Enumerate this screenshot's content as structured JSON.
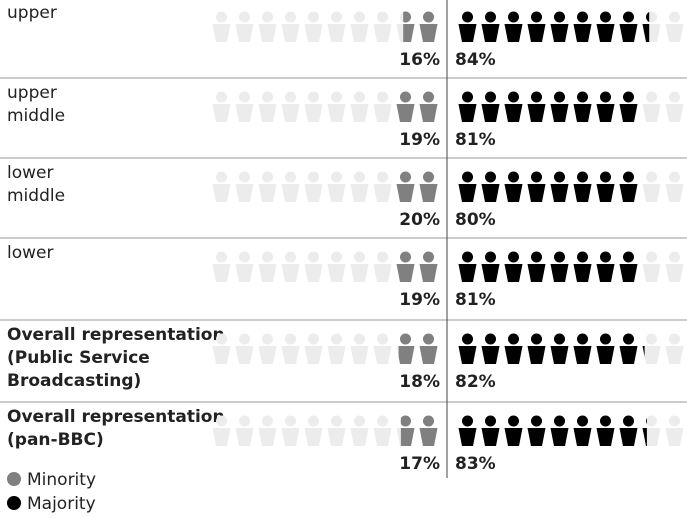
{
  "chart_data": {
    "type": "pictogram",
    "categories": [
      [
        "upper"
      ],
      [
        "upper",
        "middle"
      ],
      [
        "lower",
        "middle"
      ],
      [
        "lower"
      ],
      [
        "Overall representation",
        "(Public Service",
        "Broadcasting)"
      ],
      [
        "Overall representation",
        "(pan-BBC)"
      ]
    ],
    "series": [
      {
        "name": "Minority",
        "color": "#808080",
        "values": [
          16,
          19,
          20,
          19,
          18,
          17
        ],
        "value_labels": [
          "16%",
          "19%",
          "20%",
          "19%",
          "18%",
          "17%"
        ]
      },
      {
        "name": "Majority",
        "color": "#000000",
        "values": [
          84,
          81,
          80,
          81,
          82,
          83
        ],
        "value_labels": [
          "84%",
          "81%",
          "80%",
          "81%",
          "82%",
          "83%"
        ]
      }
    ]
  }
}
